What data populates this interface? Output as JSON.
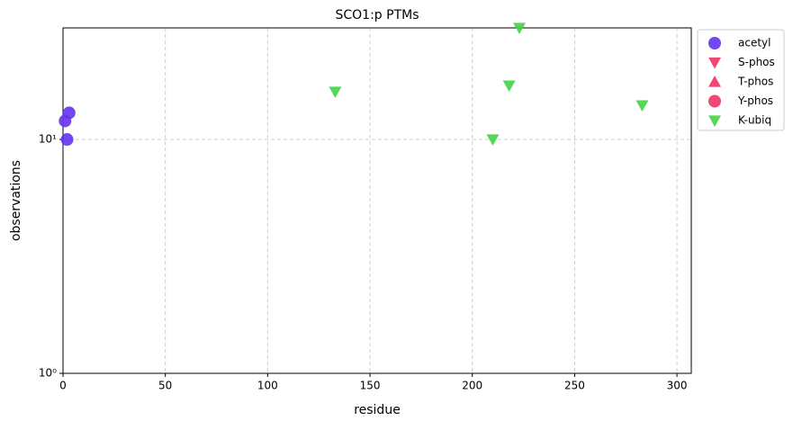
{
  "chart_data": {
    "type": "scatter",
    "title": "SCO1:p PTMs",
    "x_label": "residue",
    "y_label": "observations",
    "log_y": true,
    "grid": true,
    "legend": "outside right",
    "xlim": [
      0,
      307
    ],
    "xticks": [
      0,
      50,
      100,
      150,
      200,
      250,
      300
    ],
    "ylim": [
      1,
      30
    ],
    "yticks": [
      {
        "value": 1,
        "label": "10⁰"
      },
      {
        "value": 10,
        "label": "10¹"
      }
    ],
    "series": [
      {
        "name": "acetyl",
        "color": "#6633ee",
        "marker": "circle",
        "x": [
          1,
          2,
          3
        ],
        "values": [
          12,
          10,
          13
        ]
      },
      {
        "name": "S-phos",
        "color": "#ee3366",
        "marker": "triangle-down",
        "x": [],
        "values": []
      },
      {
        "name": "T-phos",
        "color": "#ee3366",
        "marker": "triangle-up",
        "x": [],
        "values": []
      },
      {
        "name": "Y-phos",
        "color": "#ee3366",
        "marker": "circle",
        "x": [],
        "values": []
      },
      {
        "name": "K-ubiq",
        "color": "#44d444",
        "marker": "triangle-down",
        "x": [
          133,
          210,
          218,
          223,
          283
        ],
        "values": [
          16,
          10,
          17,
          30,
          14
        ]
      }
    ]
  }
}
